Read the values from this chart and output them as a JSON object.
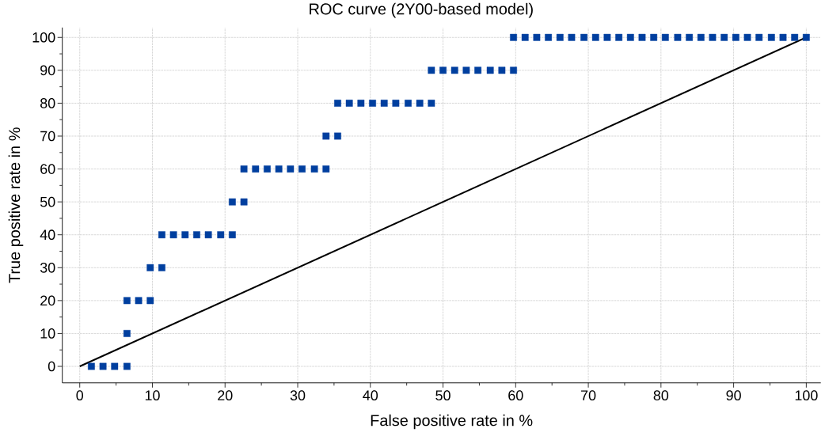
{
  "chart_data": {
    "type": "scatter",
    "title": "ROC curve (2Y00-based model)",
    "xlabel": "False positive rate in %",
    "ylabel": "True positive rate in %",
    "xlim": [
      -2.4,
      102
    ],
    "ylim": [
      -5,
      103
    ],
    "xticks": [
      0,
      10,
      20,
      30,
      40,
      50,
      60,
      70,
      80,
      90,
      100
    ],
    "yticks": [
      0,
      10,
      20,
      30,
      40,
      50,
      60,
      70,
      80,
      90,
      100
    ],
    "grid": true,
    "series": [
      {
        "marker": "square",
        "color": "#003f9f",
        "x": [
          1.6,
          3.2,
          4.8,
          6.5,
          6.5,
          6.5,
          8.1,
          9.7,
          9.7,
          11.3,
          11.3,
          12.9,
          14.5,
          16.1,
          17.7,
          19.4,
          21.0,
          21.0,
          22.6,
          22.6,
          24.2,
          25.8,
          27.4,
          29.0,
          30.6,
          32.3,
          33.9,
          33.9,
          35.5,
          35.5,
          37.1,
          38.7,
          40.3,
          41.9,
          43.5,
          45.2,
          46.8,
          48.4,
          48.4,
          50.0,
          51.6,
          53.2,
          54.8,
          56.5,
          58.1,
          59.7,
          59.7,
          61.3,
          62.9,
          64.5,
          66.1,
          67.7,
          69.4,
          71.0,
          72.6,
          74.2,
          75.8,
          77.4,
          79.0,
          80.6,
          82.3,
          83.9,
          85.5,
          87.1,
          88.7,
          90.3,
          91.9,
          93.5,
          95.2,
          96.8,
          98.4,
          100
        ],
        "values": [
          0,
          0,
          0,
          0,
          10,
          20,
          20,
          20,
          30,
          30,
          40,
          40,
          40,
          40,
          40,
          40,
          40,
          50,
          50,
          60,
          60,
          60,
          60,
          60,
          60,
          60,
          60,
          70,
          70,
          80,
          80,
          80,
          80,
          80,
          80,
          80,
          80,
          80,
          90,
          90,
          90,
          90,
          90,
          90,
          90,
          90,
          100,
          100,
          100,
          100,
          100,
          100,
          100,
          100,
          100,
          100,
          100,
          100,
          100,
          100,
          100,
          100,
          100,
          100,
          100,
          100,
          100,
          100,
          100,
          100,
          100,
          100
        ]
      },
      {
        "type": "line",
        "marker": "none",
        "line_style": "solid",
        "color": "#000000",
        "x": [
          0,
          100
        ],
        "values": [
          0,
          100
        ]
      }
    ]
  }
}
